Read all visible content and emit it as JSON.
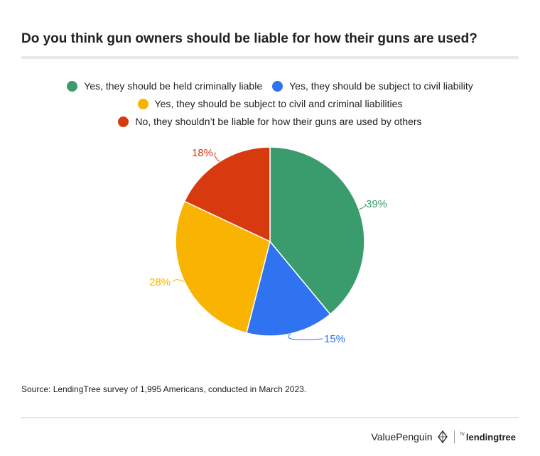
{
  "title": "Do you think gun owners should be liable for how their guns are used?",
  "source": "Source: LendingTree survey of 1,995 Americans, conducted in March 2023.",
  "branding": {
    "valuepenguin": "ValuePenguin",
    "by": "by",
    "lendingtree": "lendingtree"
  },
  "chart_data": {
    "type": "pie",
    "title": "Do you think gun owners should be liable for how their guns are used?",
    "legend_placement": "top",
    "slices": [
      {
        "label": "Yes, they should be held criminally liable",
        "value": 39,
        "display": "39%",
        "color": "#3a9b6c"
      },
      {
        "label": "Yes, they should be subject to civil liability",
        "value": 15,
        "display": "15%",
        "color": "#2f73f0"
      },
      {
        "label": "Yes, they should be subject to civil and criminal liabilities",
        "value": 28,
        "display": "28%",
        "color": "#f8b400"
      },
      {
        "label": "No, they shouldn’t be liable for how their guns are used by others",
        "value": 18,
        "display": "18%",
        "color": "#d83a10"
      }
    ]
  }
}
